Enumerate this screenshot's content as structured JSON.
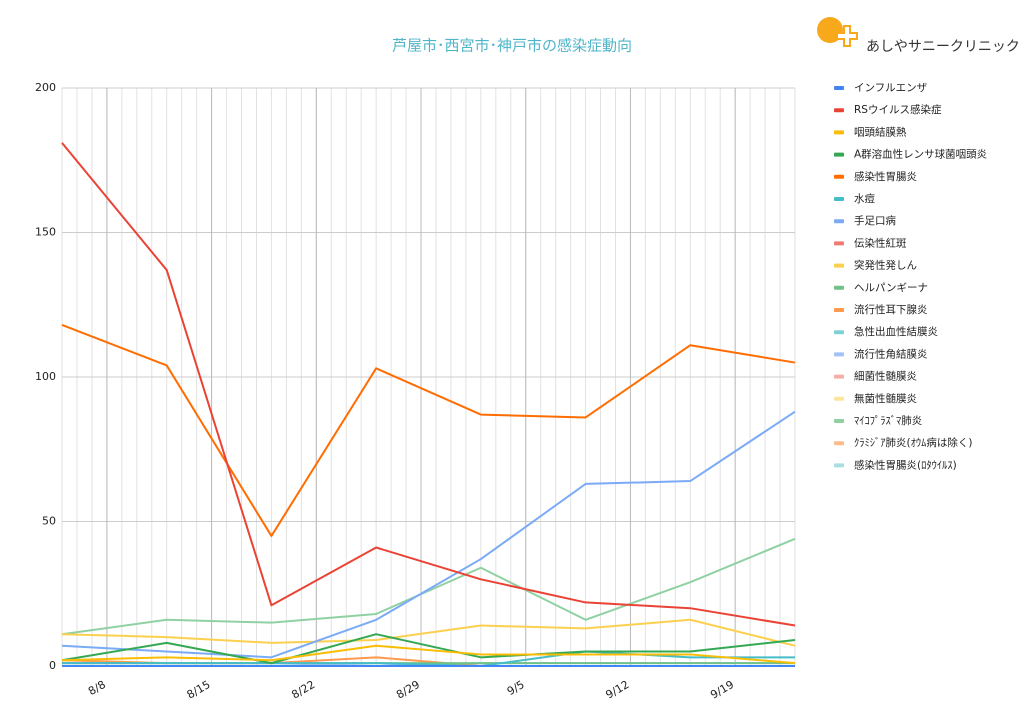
{
  "chart_data": {
    "type": "line",
    "title": "芦屋市･西宮市･神戸市の感染症動向",
    "x": [
      5,
      12,
      19,
      26,
      33,
      40,
      47,
      54
    ],
    "xlim": [
      5,
      54
    ],
    "xticks": [
      {
        "value": 8,
        "label": "8/8"
      },
      {
        "value": 15,
        "label": "8/15"
      },
      {
        "value": 22,
        "label": "8/22"
      },
      {
        "value": 29,
        "label": "8/29"
      },
      {
        "value": 36,
        "label": "9/5"
      },
      {
        "value": 43,
        "label": "9/12"
      },
      {
        "value": 50,
        "label": "9/19"
      }
    ],
    "ylim": [
      0,
      200
    ],
    "yticks": [
      0,
      50,
      100,
      150,
      200
    ],
    "grid": true,
    "minor_x_grid": true,
    "legend": "right",
    "series": [
      {
        "name": "インフルエンザ",
        "color": "#4285f4",
        "values": [
          0,
          0,
          0,
          0,
          0,
          0,
          0,
          0
        ]
      },
      {
        "name": "RSウイルス感染症",
        "color": "#ea4335",
        "values": [
          181,
          137,
          21,
          41,
          30,
          22,
          20,
          14
        ]
      },
      {
        "name": "咽頭結膜熱",
        "color": "#fbbc04",
        "values": [
          2,
          3,
          2,
          7,
          4,
          4,
          4,
          1
        ]
      },
      {
        "name": "A群溶血性レンサ球菌咽頭炎",
        "color": "#34a853",
        "values": [
          2,
          8,
          1,
          11,
          3,
          5,
          5,
          9
        ]
      },
      {
        "name": "感染性胃腸炎",
        "color": "#ff6d01",
        "values": [
          118,
          104,
          45,
          103,
          87,
          86,
          111,
          105
        ]
      },
      {
        "name": "水痘",
        "color": "#46bdc6",
        "values": [
          1,
          1,
          1,
          1,
          0,
          5,
          3,
          3
        ]
      },
      {
        "name": "手足口病",
        "color": "#7baaf7",
        "values": [
          7,
          5,
          3,
          16,
          37,
          63,
          64,
          88
        ]
      },
      {
        "name": "伝染性紅斑",
        "color": "#f07b72",
        "values": [
          0,
          0,
          0,
          0,
          0,
          0,
          0,
          0
        ]
      },
      {
        "name": "突発性発しん",
        "color": "#fcd04f",
        "values": [
          11,
          10,
          8,
          9,
          14,
          13,
          16,
          7
        ]
      },
      {
        "name": "ヘルパンギーナ",
        "color": "#71c287",
        "values": [
          1,
          1,
          1,
          1,
          1,
          1,
          1,
          1
        ]
      },
      {
        "name": "流行性耳下腺炎",
        "color": "#ff994d",
        "values": [
          2,
          1,
          1,
          3,
          0,
          0,
          0,
          0
        ]
      },
      {
        "name": "急性出血性結膜炎",
        "color": "#7ed1d7",
        "values": [
          0,
          0,
          0,
          0,
          0,
          0,
          0,
          0
        ]
      },
      {
        "name": "流行性角結膜炎",
        "color": "#a0c2f9",
        "values": [
          1,
          1,
          1,
          0,
          1,
          1,
          1,
          1
        ]
      },
      {
        "name": "細菌性髄膜炎",
        "color": "#f6aea9",
        "values": [
          0,
          0,
          0,
          0,
          0,
          0,
          0,
          0
        ]
      },
      {
        "name": "無菌性髄膜炎",
        "color": "#fde49b",
        "values": [
          0,
          0,
          0,
          0,
          0,
          0,
          0,
          0
        ]
      },
      {
        "name": "ﾏｲｺﾌﾟﾗｽﾞﾏ肺炎",
        "color": "#8fd1a2",
        "values": [
          11,
          16,
          15,
          18,
          34,
          16,
          29,
          44
        ]
      },
      {
        "name": "ｸﾗﾐｼﾞｱ肺炎(ｵｳﾑ病は除く)",
        "color": "#ffbb8c",
        "values": [
          0,
          0,
          0,
          0,
          0,
          0,
          0,
          0
        ]
      },
      {
        "name": "感染性胃腸炎(ﾛﾀｳｲﾙｽ)",
        "color": "#a9dfe3",
        "values": [
          0,
          0,
          0,
          0,
          0,
          0,
          0,
          0
        ]
      }
    ]
  },
  "logo": {
    "text": "あしやサニークリニック"
  }
}
